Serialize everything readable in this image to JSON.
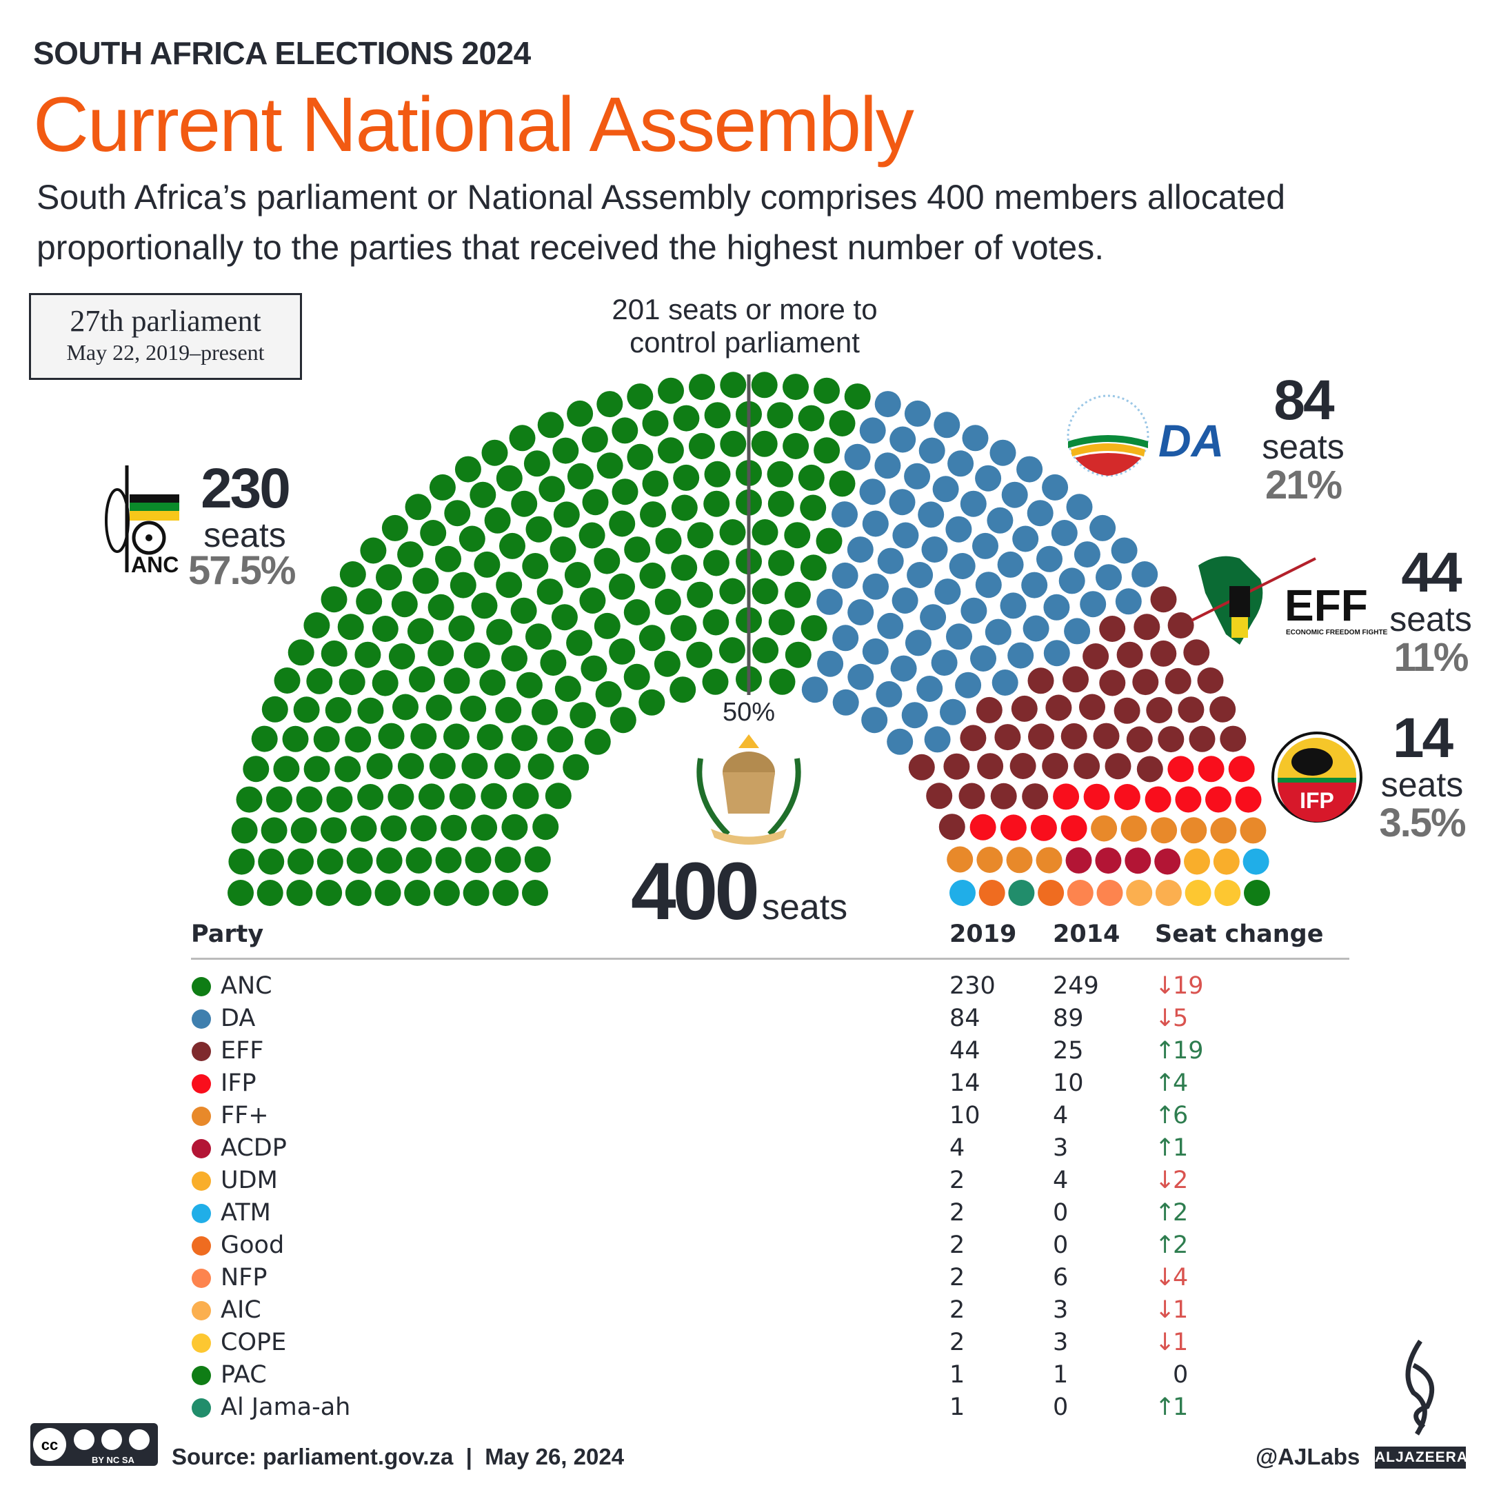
{
  "header": {
    "kicker": "SOUTH AFRICA ELECTIONS 2024",
    "title": "Current National Assembly",
    "subtitle": "South Africa’s parliament or National Assembly comprises 400 members allocated proportionally to the parties that received the highest number of votes."
  },
  "parliament_box": {
    "title": "27th parliament",
    "dates": "May 22, 2019–present"
  },
  "majority_note": {
    "line1": "201 seats or more to",
    "line2": "control parliament",
    "fifty": "50%"
  },
  "total": {
    "number": "400",
    "label": "seats"
  },
  "callouts": {
    "anc": {
      "seats": "230",
      "label": "seats",
      "pct": "57.5%",
      "logo_text": "ANC"
    },
    "da": {
      "seats": "84",
      "label": "seats",
      "pct": "21%",
      "logo_text": "DA"
    },
    "eff": {
      "seats": "44",
      "label": "seats",
      "pct": "11%",
      "logo_text": "EFF",
      "logo_sub": "ECONOMIC FREEDOM FIGHTERS"
    },
    "ifp": {
      "seats": "14",
      "label": "seats",
      "pct": "3.5%",
      "logo_text": "IFP"
    }
  },
  "chart_data": {
    "type": "table",
    "subtype": "parliament-hemicycle",
    "total_seats": 400,
    "majority": 201,
    "columns": [
      "Party",
      "2019",
      "2014",
      "Seat change"
    ],
    "rows": [
      {
        "party": "ANC",
        "color": "#0f7d15",
        "s2019": 230,
        "s2014": 249,
        "change": "19",
        "dir": "down"
      },
      {
        "party": "DA",
        "color": "#3f7fae",
        "s2019": 84,
        "s2014": 89,
        "change": "5",
        "dir": "down"
      },
      {
        "party": "EFF",
        "color": "#7f2a2d",
        "s2019": 44,
        "s2014": 25,
        "change": "19",
        "dir": "up"
      },
      {
        "party": "IFP",
        "color": "#f90e1c",
        "s2019": 14,
        "s2014": 10,
        "change": "4",
        "dir": "up"
      },
      {
        "party": "FF+",
        "color": "#e8892a",
        "s2019": 10,
        "s2014": 4,
        "change": "6",
        "dir": "up"
      },
      {
        "party": "ACDP",
        "color": "#b31535",
        "s2019": 4,
        "s2014": 3,
        "change": "1",
        "dir": "up"
      },
      {
        "party": "UDM",
        "color": "#f9ae2b",
        "s2019": 2,
        "s2014": 4,
        "change": "2",
        "dir": "down"
      },
      {
        "party": "ATM",
        "color": "#20aee8",
        "s2019": 2,
        "s2014": 0,
        "change": "2",
        "dir": "up"
      },
      {
        "party": "Good",
        "color": "#ef6c20",
        "s2019": 2,
        "s2014": 0,
        "change": "2",
        "dir": "up"
      },
      {
        "party": "NFP",
        "color": "#fd844e",
        "s2019": 2,
        "s2014": 6,
        "change": "4",
        "dir": "down"
      },
      {
        "party": "AIC",
        "color": "#fbaf4f",
        "s2019": 2,
        "s2014": 3,
        "change": "1",
        "dir": "down"
      },
      {
        "party": "COPE",
        "color": "#fdc731",
        "s2019": 2,
        "s2014": 3,
        "change": "1",
        "dir": "down"
      },
      {
        "party": "PAC",
        "color": "#0f7d15",
        "s2019": 1,
        "s2014": 1,
        "change": "0",
        "dir": "none"
      },
      {
        "party": "Al Jama-ah",
        "color": "#218d6b",
        "s2019": 1,
        "s2014": 0,
        "change": "1",
        "dir": "up"
      }
    ]
  },
  "footer": {
    "source": "Source: parliament.gov.za  |  May 26, 2024",
    "handle": "@AJLabs",
    "brand": "ALJAZEERA",
    "license": "cc BY NC SA"
  },
  "colors": {
    "accent": "#f25a12",
    "text": "#262a33",
    "muted": "#707070",
    "up": "#2e7d4f",
    "down": "#d9534f"
  }
}
